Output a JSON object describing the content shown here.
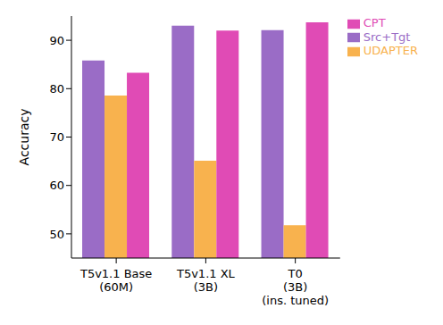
{
  "chart_data": {
    "type": "bar",
    "y_label": "Accuracy",
    "categories": [
      "T5v1.1 Base\n(60M)",
      "T5v1.1 XL\n(3B)",
      "T0\n(3B)\n(ins. tuned)"
    ],
    "series": [
      {
        "name": "Src+Tgt",
        "color": "#9a6cc6",
        "values": [
          85.8,
          93.0,
          92.1
        ]
      },
      {
        "name": "UDAPTER",
        "color": "#f8b24e",
        "values": [
          78.6,
          65.1,
          51.8
        ]
      },
      {
        "name": "CPT",
        "color": "#e04bb5",
        "values": [
          83.3,
          92.0,
          93.7
        ]
      }
    ],
    "ylim": [
      45,
      95
    ],
    "yticks": [
      50,
      60,
      70,
      80,
      90
    ],
    "grid": false,
    "legend": "upper right"
  }
}
